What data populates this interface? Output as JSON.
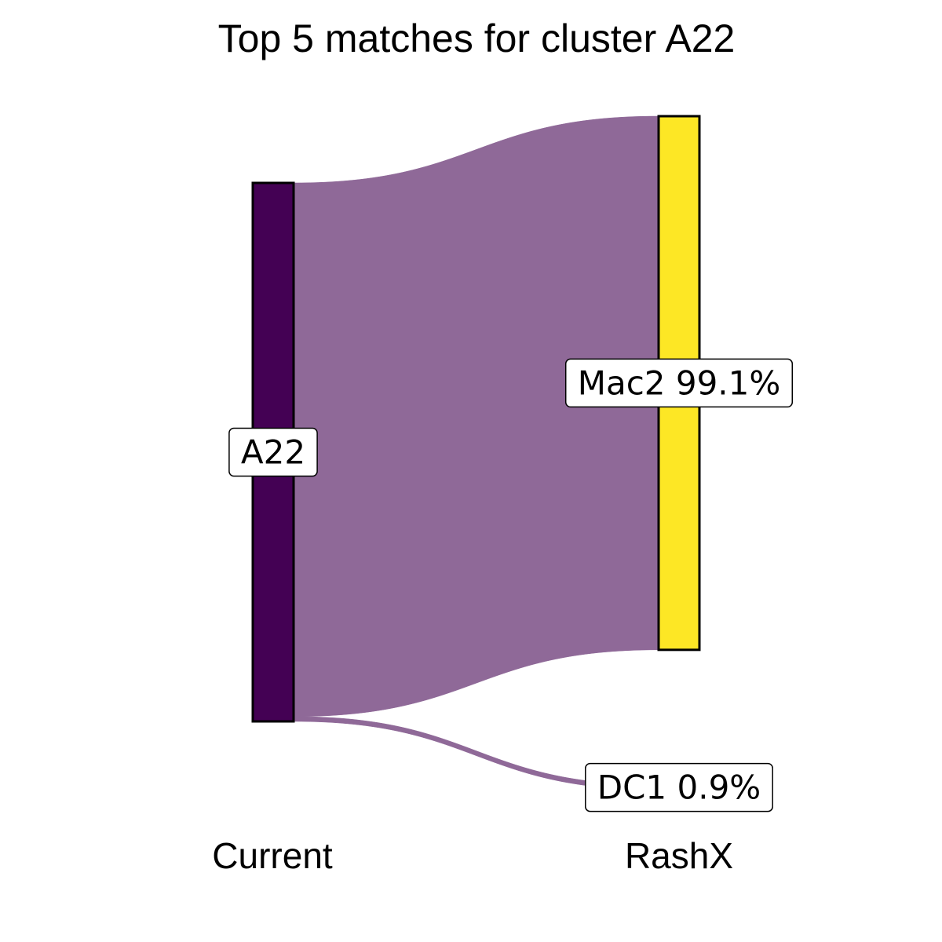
{
  "chart_data": {
    "type": "sankey",
    "title": "Top 5 matches for cluster A22",
    "axes": [
      "Current",
      "RashX"
    ],
    "source": {
      "name": "A22",
      "label": "A22",
      "color": "#440154"
    },
    "targets": [
      {
        "name": "Mac2",
        "label": "Mac2 99.1%",
        "value": 99.1,
        "color": "#fde725"
      },
      {
        "name": "DC1",
        "label": "DC1 0.9%",
        "value": 0.9,
        "color": "#440154"
      }
    ],
    "flow_color": "#8f6998"
  }
}
